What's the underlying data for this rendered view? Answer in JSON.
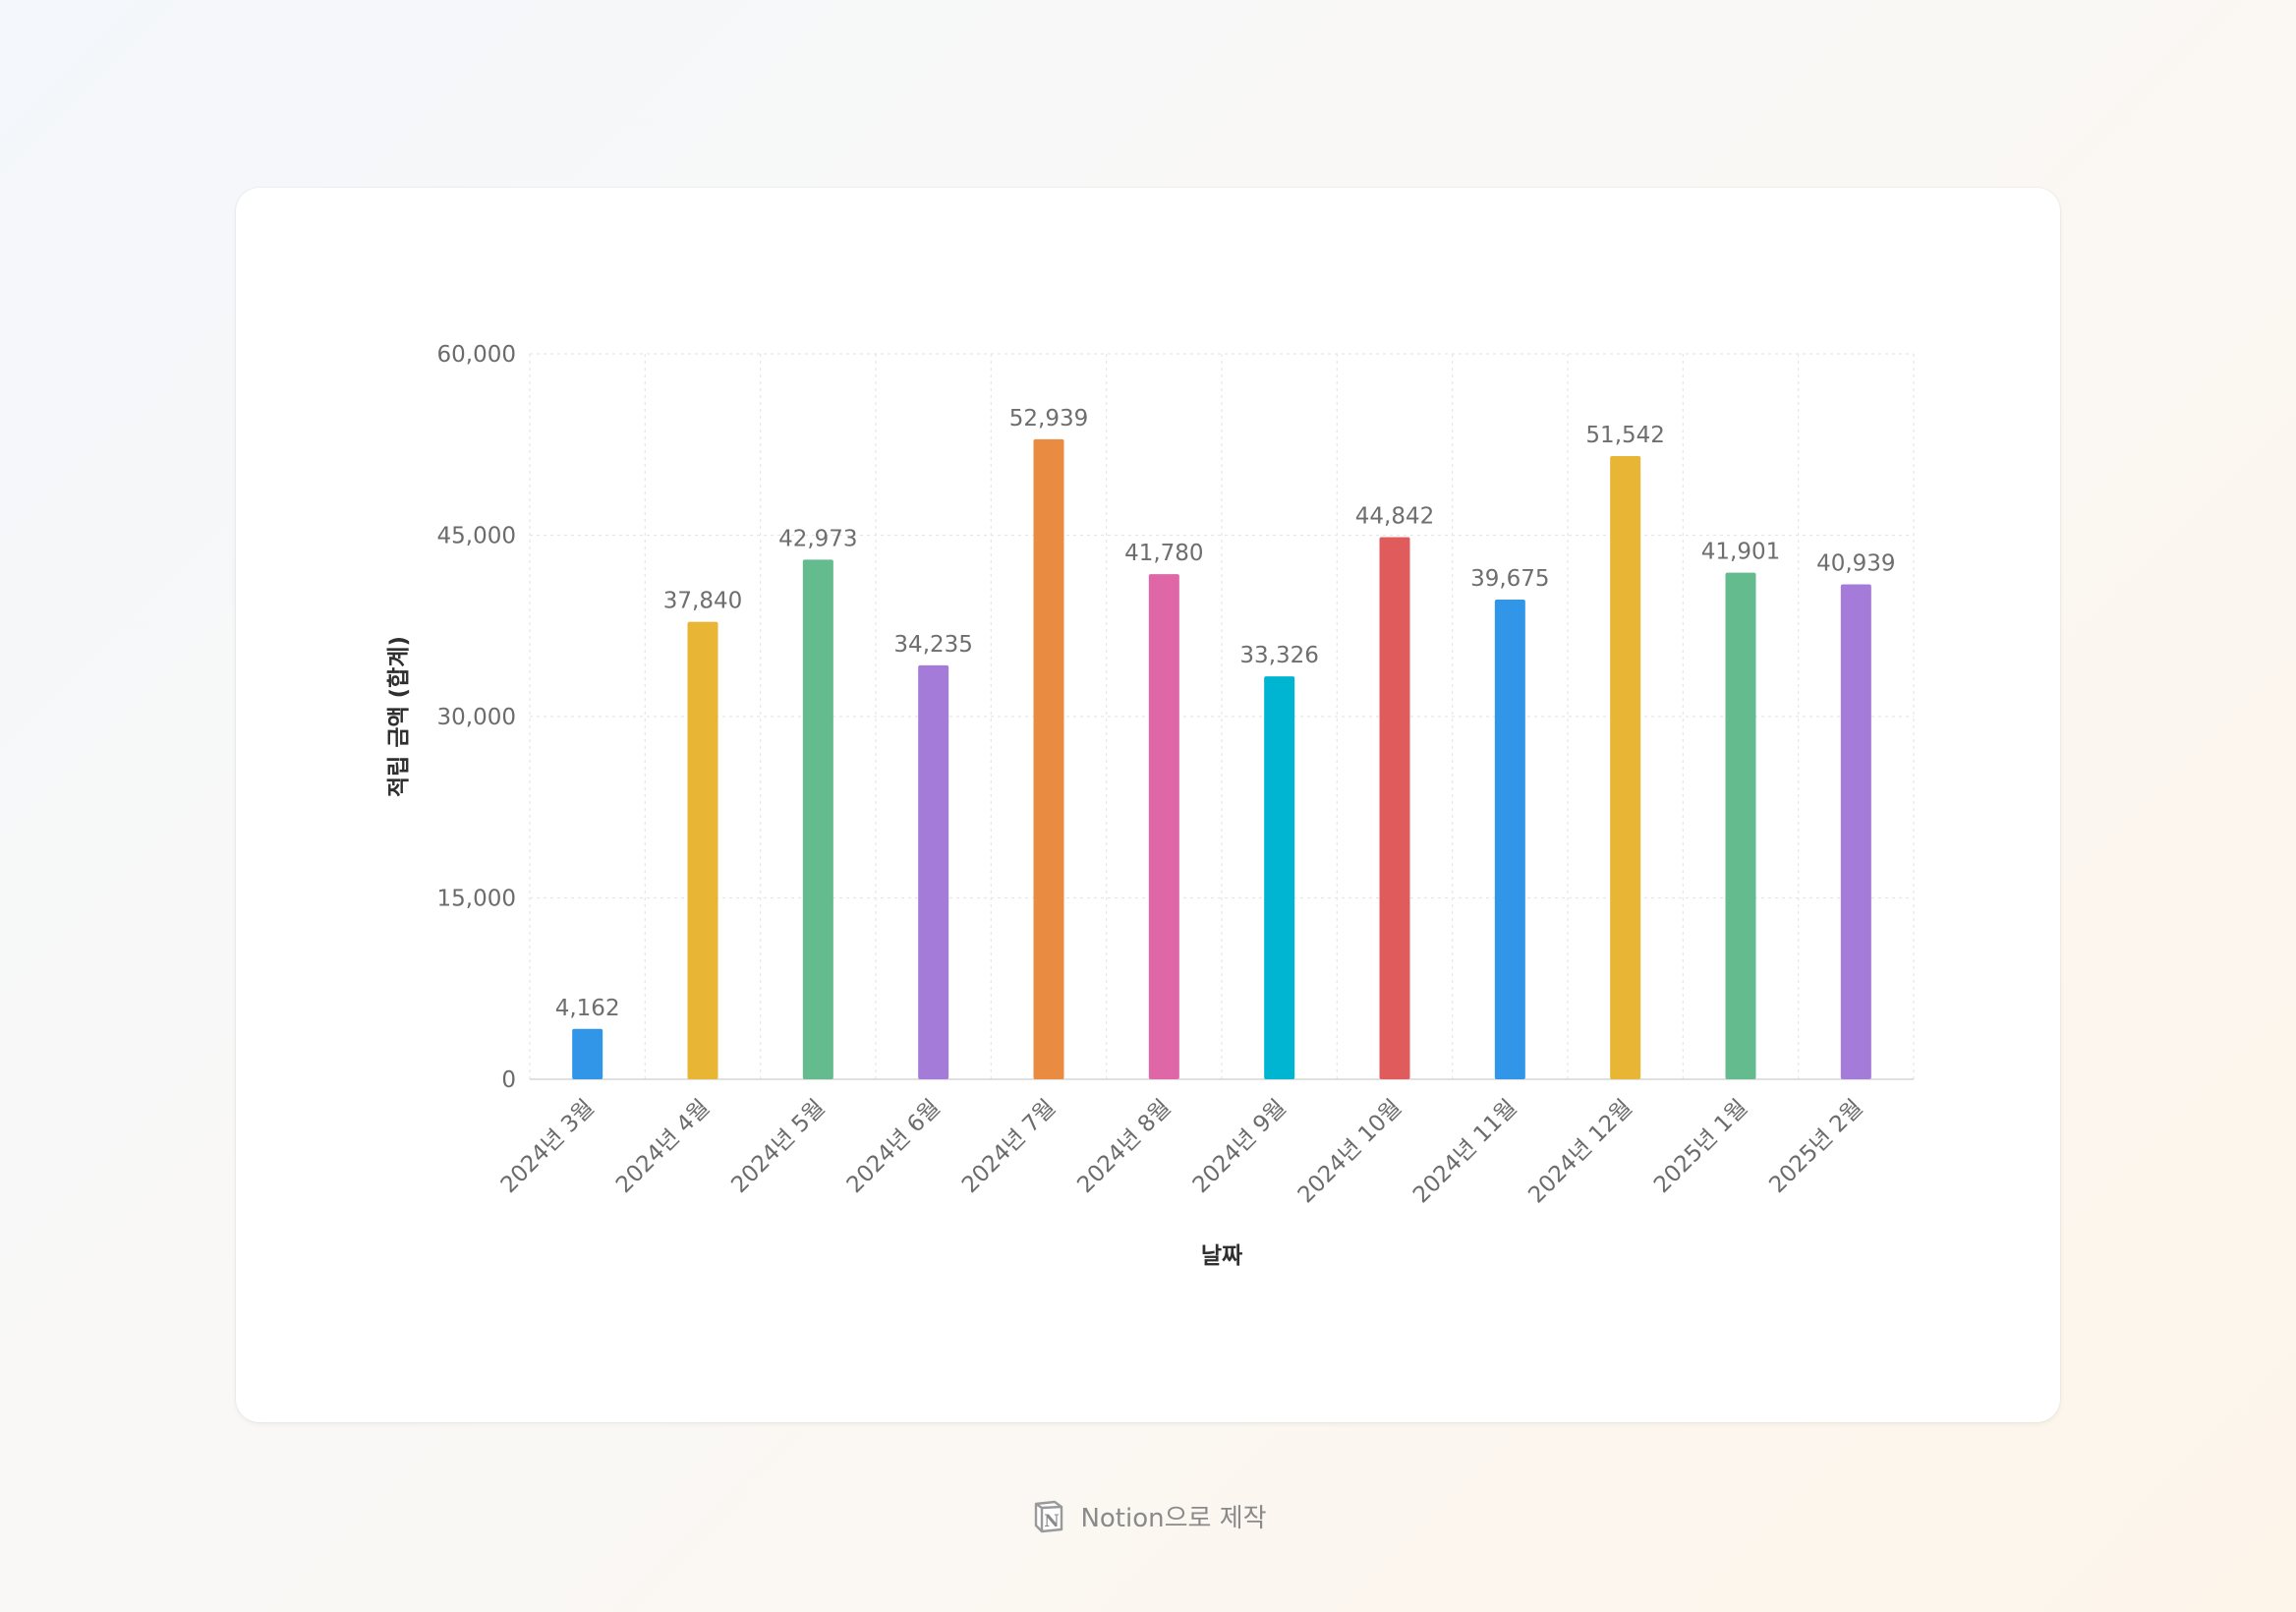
{
  "chart_data": {
    "type": "bar",
    "title": "",
    "xlabel": "날짜",
    "ylabel": "적립 금액 (합계)",
    "ylim": [
      0,
      60000
    ],
    "yticks": [
      0,
      15000,
      30000,
      45000,
      60000
    ],
    "ytick_labels": [
      "0",
      "15,000",
      "30,000",
      "45,000",
      "60,000"
    ],
    "grid": true,
    "legend": "none",
    "categories": [
      "2024년 3월",
      "2024년 4월",
      "2024년 5월",
      "2024년 6월",
      "2024년 7월",
      "2024년 8월",
      "2024년 9월",
      "2024년 10월",
      "2024년 11월",
      "2024년 12월",
      "2025년 1월",
      "2025년 2월"
    ],
    "values": [
      4162,
      37840,
      42973,
      34235,
      52939,
      41780,
      33326,
      44842,
      39675,
      51542,
      41901,
      40939
    ],
    "value_labels": [
      "4,162",
      "37,840",
      "42,973",
      "34,235",
      "52,939",
      "41,780",
      "33,326",
      "44,842",
      "39,675",
      "51,542",
      "41,901",
      "40,939"
    ],
    "bar_colors": [
      "#3196e8",
      "#e8b634",
      "#64bb8e",
      "#a57bd9",
      "#e98b40",
      "#df67a7",
      "#00b5d1",
      "#e05c5c",
      "#3196e8",
      "#e8b634",
      "#64bb8e",
      "#a57bd9"
    ]
  },
  "footer": {
    "logo_icon": "notion-logo-icon",
    "text": "Notion으로 제작"
  }
}
